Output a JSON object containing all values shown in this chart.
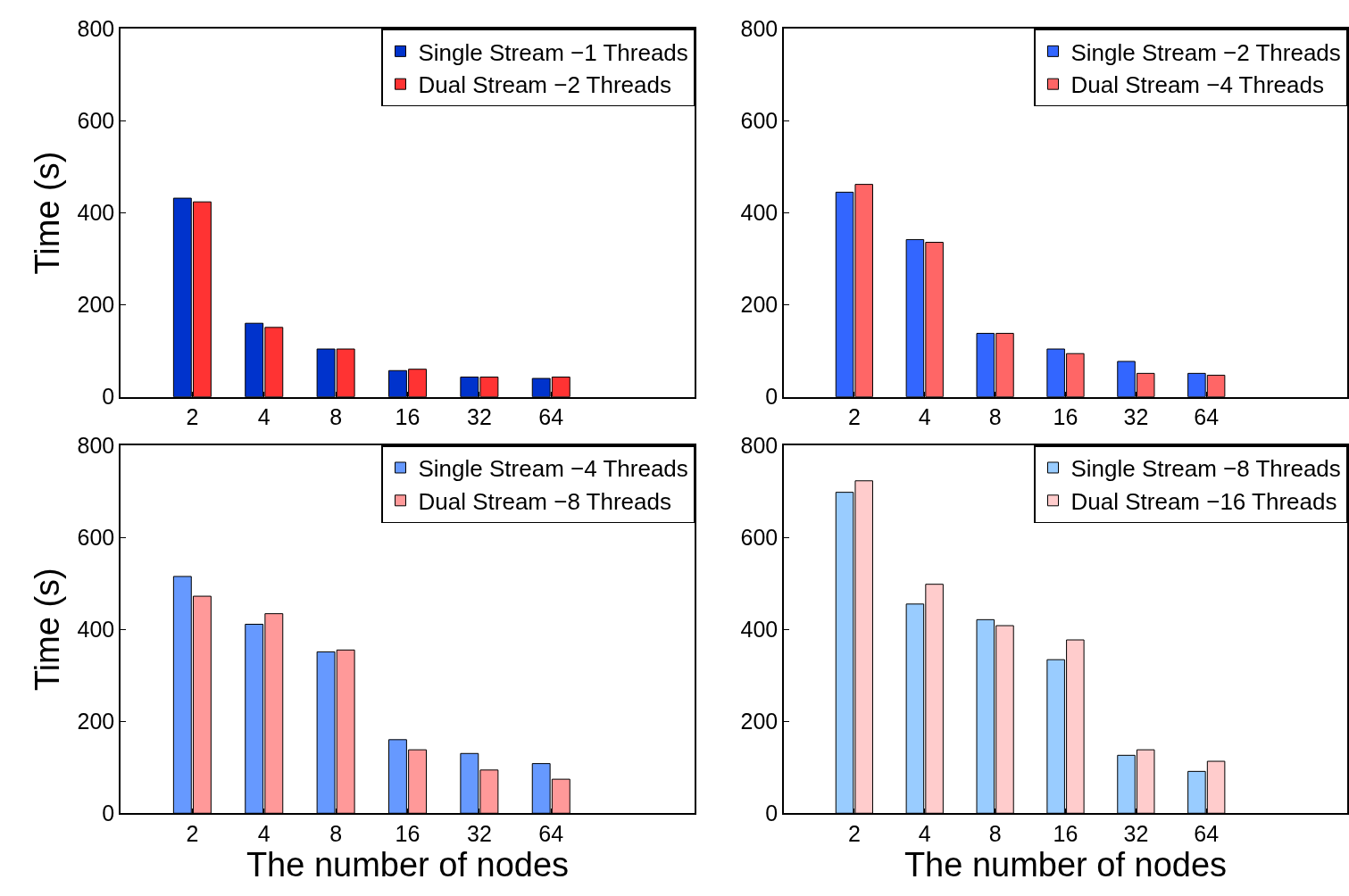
{
  "chart_data": [
    {
      "type": "bar",
      "categories": [
        "2",
        "4",
        "8",
        "16",
        "32",
        "64"
      ],
      "ylabel": "Time (s)",
      "ylim": [
        0,
        800
      ],
      "yticks": [
        0,
        200,
        400,
        600,
        800
      ],
      "legend": "top right",
      "series": [
        {
          "name": "Single Stream −1 Threads",
          "color": "#0033cc",
          "values": [
            432,
            160,
            104,
            57,
            43,
            40
          ]
        },
        {
          "name": "Dual Stream −2 Threads",
          "color": "#ff3333",
          "values": [
            424,
            151,
            104,
            60,
            43,
            43
          ]
        }
      ]
    },
    {
      "type": "bar",
      "categories": [
        "2",
        "4",
        "8",
        "16",
        "32",
        "64"
      ],
      "ylim": [
        0,
        800
      ],
      "yticks": [
        0,
        200,
        400,
        600,
        800
      ],
      "legend": "top right",
      "series": [
        {
          "name": "Single Stream −2 Threads",
          "color": "#3366ff",
          "values": [
            445,
            342,
            138,
            104,
            77,
            51
          ]
        },
        {
          "name": "Dual Stream −4 Threads",
          "color": "#ff6666",
          "values": [
            462,
            336,
            138,
            94,
            51,
            47
          ]
        }
      ]
    },
    {
      "type": "bar",
      "categories": [
        "2",
        "4",
        "8",
        "16",
        "32",
        "64"
      ],
      "ylabel": "Time (s)",
      "xlabel": "The number of nodes",
      "ylim": [
        0,
        800
      ],
      "yticks": [
        0,
        200,
        400,
        600,
        800
      ],
      "legend": "top right",
      "series": [
        {
          "name": "Single Stream −4 Threads",
          "color": "#6699ff",
          "values": [
            515,
            411,
            351,
            160,
            130,
            108
          ]
        },
        {
          "name": "Dual Stream −8 Threads",
          "color": "#ff9999",
          "values": [
            472,
            434,
            355,
            138,
            94,
            74
          ]
        }
      ]
    },
    {
      "type": "bar",
      "categories": [
        "2",
        "4",
        "8",
        "16",
        "32",
        "64"
      ],
      "xlabel": "The number of nodes",
      "ylim": [
        0,
        800
      ],
      "yticks": [
        0,
        200,
        400,
        600,
        800
      ],
      "legend": "top right",
      "series": [
        {
          "name": "Single Stream −8 Threads",
          "color": "#99ccff",
          "values": [
            698,
            455,
            421,
            334,
            126,
            91
          ]
        },
        {
          "name": "Dual Stream −16 Threads",
          "color": "#ffcccc",
          "values": [
            723,
            498,
            408,
            377,
            138,
            113
          ]
        }
      ]
    }
  ]
}
